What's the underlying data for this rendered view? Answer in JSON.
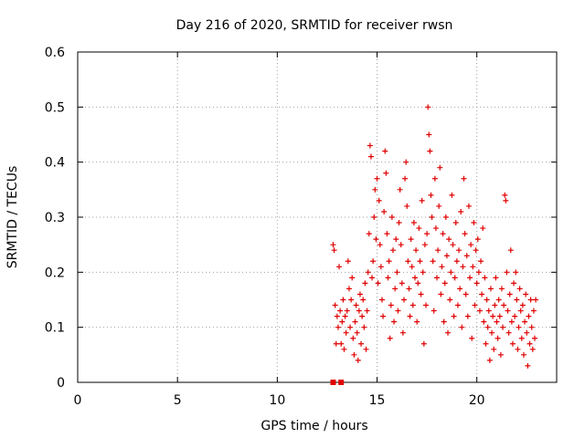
{
  "chart_data": {
    "type": "scatter",
    "title": "Day 216 of 2020, SRMTID for receiver rwsn",
    "xlabel": "GPS time / hours",
    "ylabel": "SRMTID / TECUs",
    "xlim": [
      0,
      24
    ],
    "ylim": [
      0,
      0.6
    ],
    "xticks": [
      "0",
      "5",
      "10",
      "15",
      "20"
    ],
    "yticks": [
      "0",
      "0.1",
      "0.2",
      "0.3",
      "0.4",
      "0.5",
      "0.6"
    ],
    "grid": true,
    "marker": "plus",
    "color": "#e00000",
    "zero_points": [
      [
        12.8,
        0
      ],
      [
        13.2,
        0
      ]
    ],
    "series": [
      {
        "name": "SRMTID",
        "points": [
          [
            12.8,
            0.25
          ],
          [
            12.85,
            0.24
          ],
          [
            12.9,
            0.14
          ],
          [
            12.95,
            0.07
          ],
          [
            13.0,
            0.12
          ],
          [
            13.05,
            0.1
          ],
          [
            13.1,
            0.21
          ],
          [
            13.15,
            0.13
          ],
          [
            13.2,
            0.07
          ],
          [
            13.25,
            0.11
          ],
          [
            13.3,
            0.15
          ],
          [
            13.35,
            0.06
          ],
          [
            13.4,
            0.12
          ],
          [
            13.45,
            0.09
          ],
          [
            13.5,
            0.13
          ],
          [
            13.55,
            0.22
          ],
          [
            13.6,
            0.17
          ],
          [
            13.65,
            0.1
          ],
          [
            13.7,
            0.15
          ],
          [
            13.75,
            0.19
          ],
          [
            13.8,
            0.08
          ],
          [
            13.85,
            0.05
          ],
          [
            13.9,
            0.11
          ],
          [
            13.95,
            0.14
          ],
          [
            14.0,
            0.09
          ],
          [
            14.05,
            0.04
          ],
          [
            14.1,
            0.13
          ],
          [
            14.15,
            0.16
          ],
          [
            14.2,
            0.07
          ],
          [
            14.25,
            0.12
          ],
          [
            14.3,
            0.15
          ],
          [
            14.35,
            0.1
          ],
          [
            14.4,
            0.18
          ],
          [
            14.45,
            0.06
          ],
          [
            14.5,
            0.13
          ],
          [
            14.55,
            0.2
          ],
          [
            14.6,
            0.27
          ],
          [
            14.65,
            0.43
          ],
          [
            14.7,
            0.41
          ],
          [
            14.75,
            0.19
          ],
          [
            14.8,
            0.22
          ],
          [
            14.85,
            0.3
          ],
          [
            14.9,
            0.35
          ],
          [
            14.95,
            0.26
          ],
          [
            15.0,
            0.37
          ],
          [
            15.05,
            0.18
          ],
          [
            15.1,
            0.33
          ],
          [
            15.15,
            0.25
          ],
          [
            15.2,
            0.21
          ],
          [
            15.25,
            0.15
          ],
          [
            15.3,
            0.12
          ],
          [
            15.35,
            0.31
          ],
          [
            15.4,
            0.42
          ],
          [
            15.45,
            0.38
          ],
          [
            15.5,
            0.27
          ],
          [
            15.55,
            0.19
          ],
          [
            15.6,
            0.22
          ],
          [
            15.65,
            0.08
          ],
          [
            15.7,
            0.14
          ],
          [
            15.75,
            0.3
          ],
          [
            15.8,
            0.24
          ],
          [
            15.85,
            0.11
          ],
          [
            15.9,
            0.17
          ],
          [
            15.95,
            0.26
          ],
          [
            16.0,
            0.2
          ],
          [
            16.05,
            0.13
          ],
          [
            16.1,
            0.29
          ],
          [
            16.15,
            0.35
          ],
          [
            16.2,
            0.25
          ],
          [
            16.25,
            0.18
          ],
          [
            16.3,
            0.09
          ],
          [
            16.35,
            0.15
          ],
          [
            16.4,
            0.37
          ],
          [
            16.45,
            0.4
          ],
          [
            16.5,
            0.32
          ],
          [
            16.55,
            0.22
          ],
          [
            16.6,
            0.17
          ],
          [
            16.65,
            0.12
          ],
          [
            16.7,
            0.26
          ],
          [
            16.75,
            0.21
          ],
          [
            16.8,
            0.14
          ],
          [
            16.85,
            0.29
          ],
          [
            16.9,
            0.19
          ],
          [
            16.95,
            0.24
          ],
          [
            17.0,
            0.11
          ],
          [
            17.05,
            0.18
          ],
          [
            17.1,
            0.28
          ],
          [
            17.15,
            0.22
          ],
          [
            17.2,
            0.16
          ],
          [
            17.25,
            0.33
          ],
          [
            17.3,
            0.2
          ],
          [
            17.35,
            0.07
          ],
          [
            17.4,
            0.25
          ],
          [
            17.45,
            0.14
          ],
          [
            17.5,
            0.27
          ],
          [
            17.55,
            0.5
          ],
          [
            17.6,
            0.45
          ],
          [
            17.65,
            0.42
          ],
          [
            17.7,
            0.34
          ],
          [
            17.75,
            0.3
          ],
          [
            17.8,
            0.22
          ],
          [
            17.85,
            0.13
          ],
          [
            17.9,
            0.37
          ],
          [
            17.95,
            0.28
          ],
          [
            18.0,
            0.19
          ],
          [
            18.05,
            0.24
          ],
          [
            18.1,
            0.32
          ],
          [
            18.15,
            0.39
          ],
          [
            18.2,
            0.16
          ],
          [
            18.25,
            0.21
          ],
          [
            18.3,
            0.27
          ],
          [
            18.35,
            0.11
          ],
          [
            18.4,
            0.18
          ],
          [
            18.45,
            0.3
          ],
          [
            18.5,
            0.23
          ],
          [
            18.55,
            0.09
          ],
          [
            18.6,
            0.26
          ],
          [
            18.65,
            0.15
          ],
          [
            18.7,
            0.2
          ],
          [
            18.75,
            0.34
          ],
          [
            18.8,
            0.25
          ],
          [
            18.85,
            0.12
          ],
          [
            18.9,
            0.19
          ],
          [
            18.95,
            0.29
          ],
          [
            19.0,
            0.22
          ],
          [
            19.05,
            0.14
          ],
          [
            19.1,
            0.24
          ],
          [
            19.15,
            0.17
          ],
          [
            19.2,
            0.31
          ],
          [
            19.25,
            0.1
          ],
          [
            19.3,
            0.21
          ],
          [
            19.35,
            0.37
          ],
          [
            19.4,
            0.27
          ],
          [
            19.45,
            0.16
          ],
          [
            19.5,
            0.23
          ],
          [
            19.55,
            0.12
          ],
          [
            19.6,
            0.32
          ],
          [
            19.65,
            0.19
          ],
          [
            19.7,
            0.25
          ],
          [
            19.75,
            0.08
          ],
          [
            19.8,
            0.21
          ],
          [
            19.85,
            0.29
          ],
          [
            19.9,
            0.14
          ],
          [
            19.95,
            0.24
          ],
          [
            20.0,
            0.18
          ],
          [
            20.05,
            0.26
          ],
          [
            20.1,
            0.2
          ],
          [
            20.15,
            0.13
          ],
          [
            20.2,
            0.22
          ],
          [
            20.25,
            0.16
          ],
          [
            20.3,
            0.28
          ],
          [
            20.35,
            0.11
          ],
          [
            20.4,
            0.19
          ],
          [
            20.45,
            0.07
          ],
          [
            20.5,
            0.15
          ],
          [
            20.55,
            0.1
          ],
          [
            20.6,
            0.13
          ],
          [
            20.65,
            0.04
          ],
          [
            20.7,
            0.17
          ],
          [
            20.75,
            0.09
          ],
          [
            20.8,
            0.12
          ],
          [
            20.85,
            0.06
          ],
          [
            20.9,
            0.14
          ],
          [
            20.95,
            0.19
          ],
          [
            21.0,
            0.11
          ],
          [
            21.05,
            0.08
          ],
          [
            21.1,
            0.15
          ],
          [
            21.15,
            0.12
          ],
          [
            21.2,
            0.05
          ],
          [
            21.25,
            0.17
          ],
          [
            21.3,
            0.1
          ],
          [
            21.35,
            0.14
          ],
          [
            21.4,
            0.34
          ],
          [
            21.45,
            0.33
          ],
          [
            21.5,
            0.2
          ],
          [
            21.55,
            0.13
          ],
          [
            21.6,
            0.09
          ],
          [
            21.65,
            0.16
          ],
          [
            21.7,
            0.24
          ],
          [
            21.75,
            0.11
          ],
          [
            21.8,
            0.07
          ],
          [
            21.85,
            0.18
          ],
          [
            21.9,
            0.12
          ],
          [
            21.95,
            0.2
          ],
          [
            22.0,
            0.15
          ],
          [
            22.05,
            0.06
          ],
          [
            22.1,
            0.1
          ],
          [
            22.15,
            0.17
          ],
          [
            22.2,
            0.13
          ],
          [
            22.25,
            0.08
          ],
          [
            22.3,
            0.14
          ],
          [
            22.35,
            0.05
          ],
          [
            22.4,
            0.11
          ],
          [
            22.45,
            0.16
          ],
          [
            22.5,
            0.09
          ],
          [
            22.55,
            0.03
          ],
          [
            22.6,
            0.12
          ],
          [
            22.65,
            0.07
          ],
          [
            22.7,
            0.15
          ],
          [
            22.75,
            0.1
          ],
          [
            22.8,
            0.06
          ],
          [
            22.85,
            0.13
          ],
          [
            22.9,
            0.08
          ],
          [
            22.95,
            0.15
          ]
        ]
      }
    ]
  }
}
